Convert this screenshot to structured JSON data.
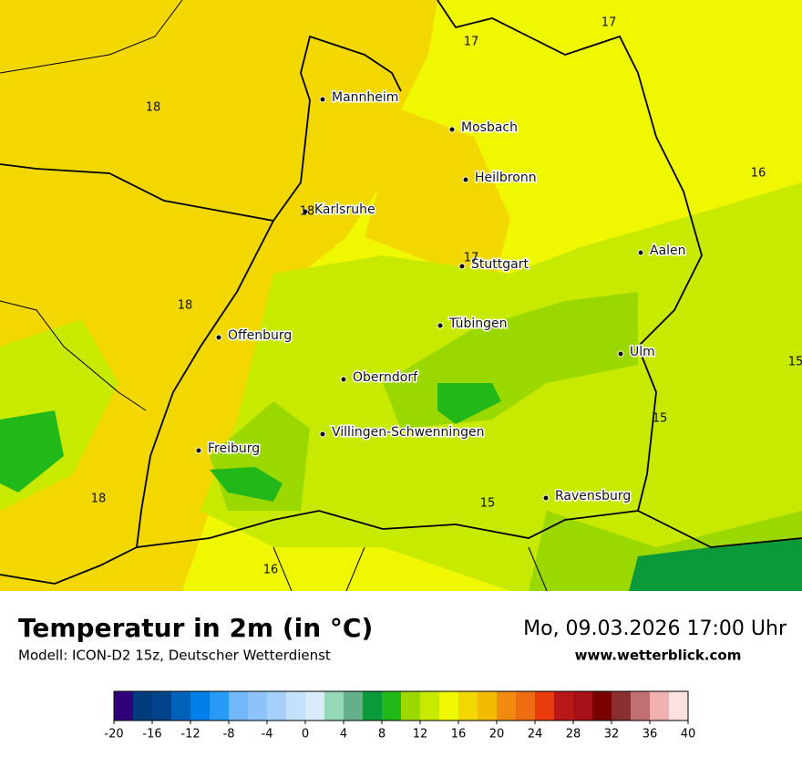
{
  "map": {
    "title": "Temperatur in 2m (in °C)",
    "subtitle": "Modell: ICON-D2 15z, Deutscher Wetterdienst",
    "date": "Mo, 09.03.2026 17:00 Uhr",
    "website": "www.wetterblick.com",
    "cities": [
      "Mannheim",
      "Mosbach",
      "Heilbronn",
      "Karlsruhe",
      "Aalen",
      "Stuttgart",
      "Tübingen",
      "Offenburg",
      "Ulm",
      "Oberndorf",
      "Villingen-Schwenningen",
      "Freiburg",
      "Ravensburg"
    ],
    "contour_labels": [
      17,
      17,
      18,
      16,
      18,
      17,
      18,
      15,
      15,
      15,
      18,
      16
    ],
    "colorbar": {
      "ticks": [
        -20,
        -16,
        -12,
        -8,
        -4,
        0,
        4,
        8,
        12,
        16,
        20,
        24,
        28,
        32,
        36,
        40
      ],
      "colors": [
        "#30007a",
        "#003c7c",
        "#00448c",
        "#0062b8",
        "#0080e8",
        "#2a9af8",
        "#70b8fa",
        "#8cc4fa",
        "#a6d0fb",
        "#c4e0fc",
        "#d8ecfc",
        "#94d8b8",
        "#64b08c",
        "#0a9a3a",
        "#22b81a",
        "#9ad800",
        "#c8ea00",
        "#f0f800",
        "#f2d800",
        "#f4bc00",
        "#f08a10",
        "#f06c10",
        "#e83a0a",
        "#b81818",
        "#a81018",
        "#7a0000",
        "#8a3030",
        "#c07070",
        "#f0b0b0",
        "#fde0e0"
      ]
    }
  }
}
